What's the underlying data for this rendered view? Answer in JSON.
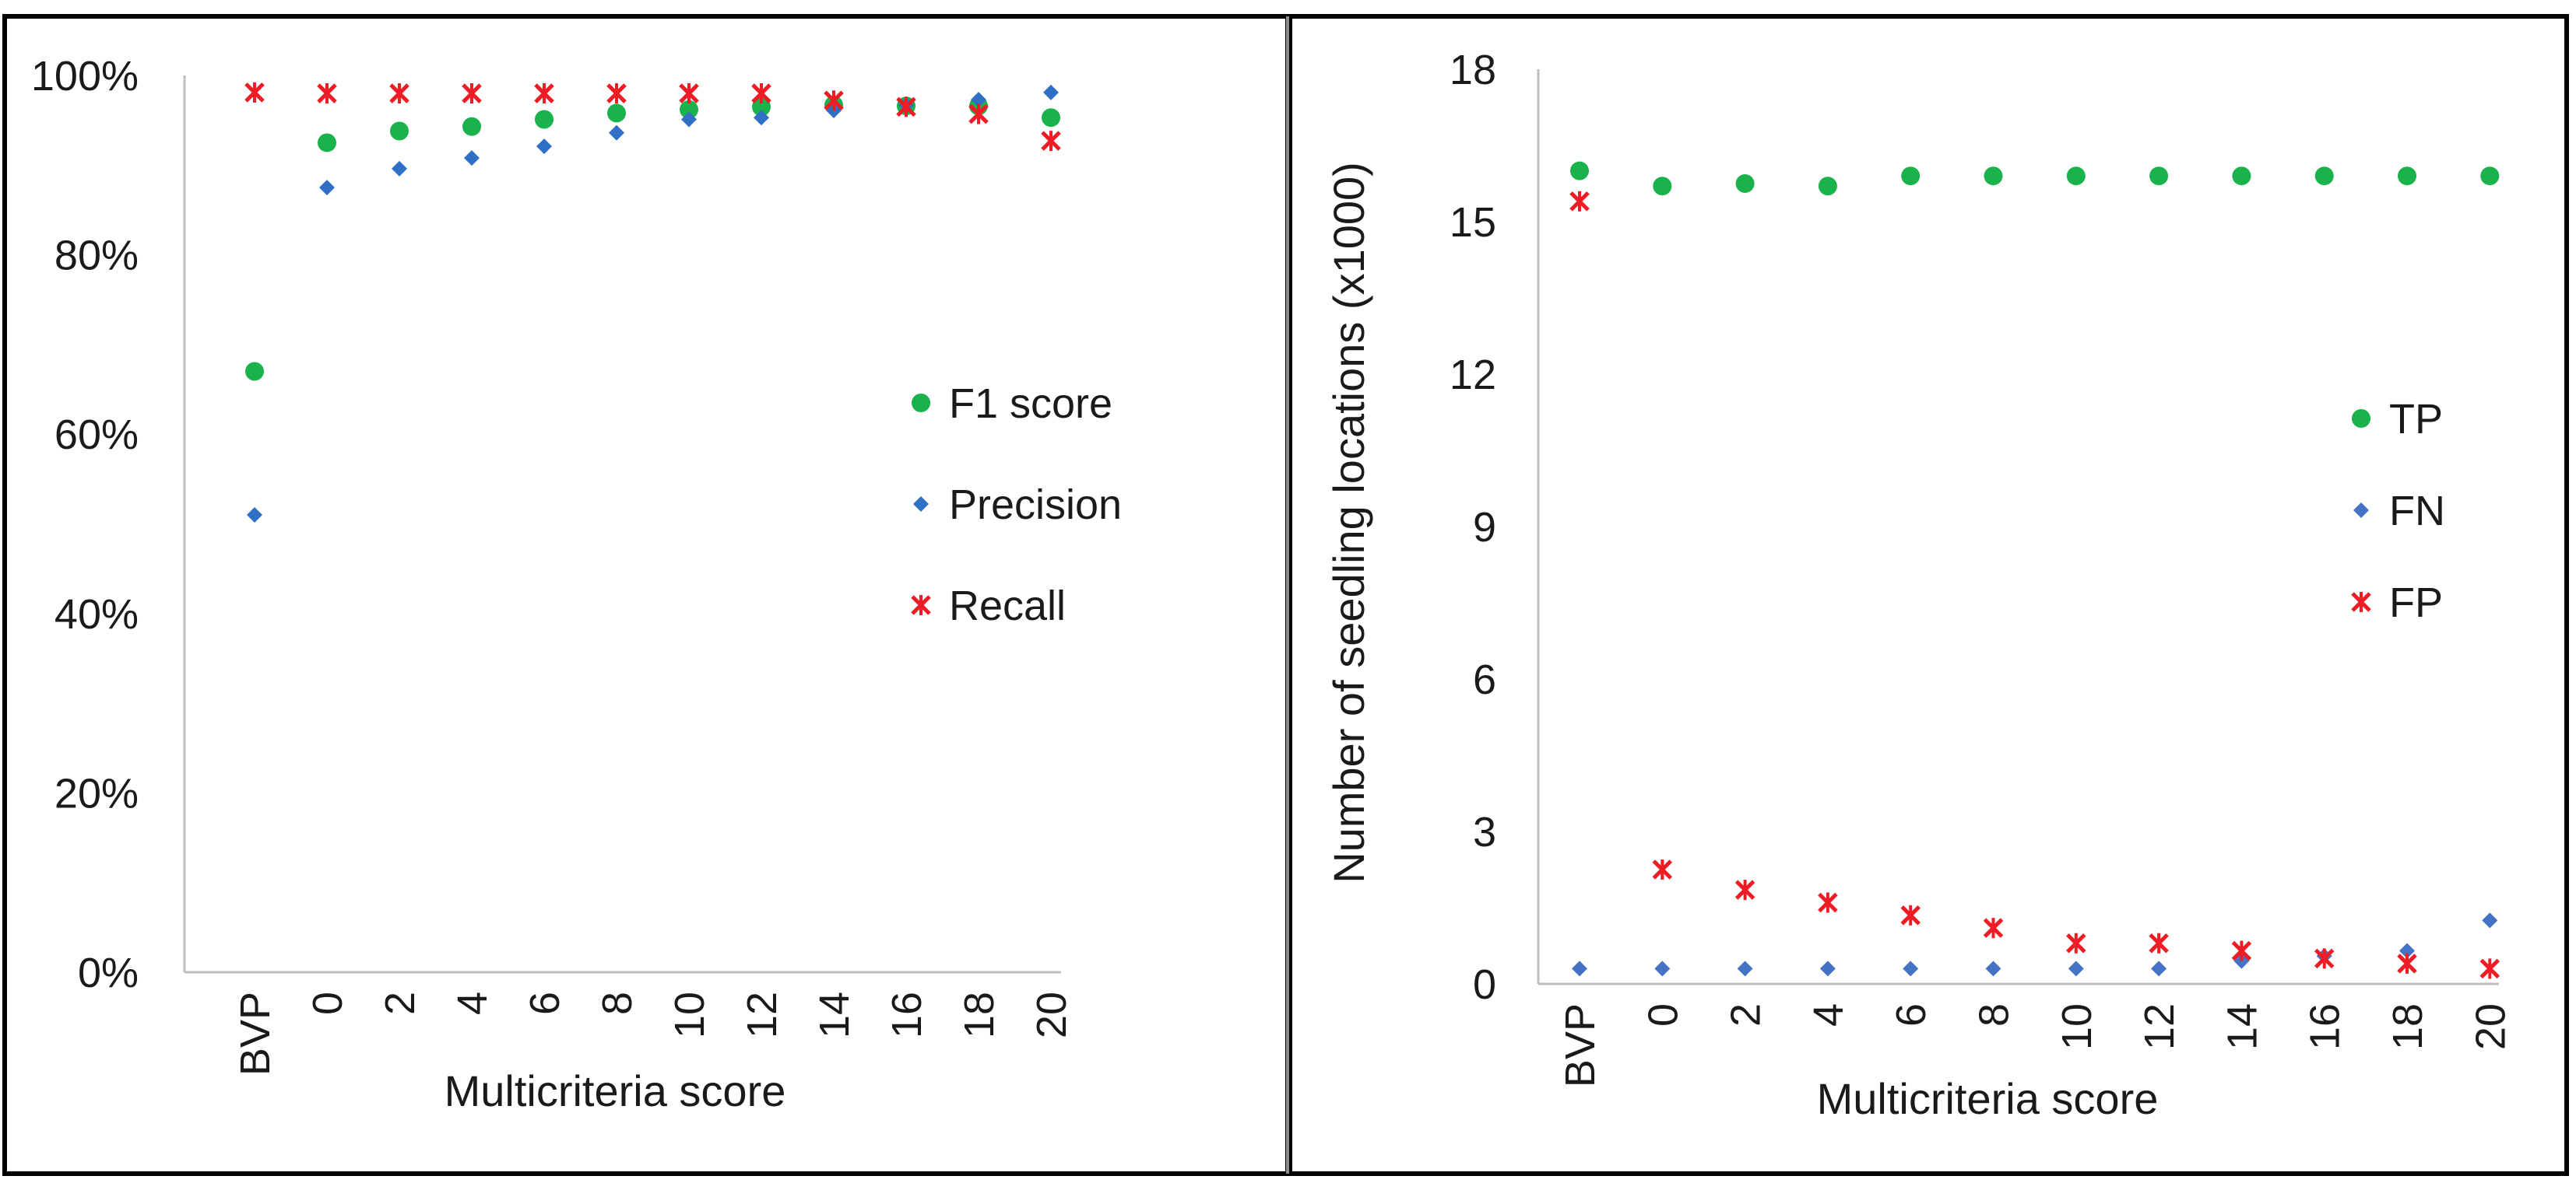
{
  "colors": {
    "f1": "#19b24b",
    "precision": "#2f6fc6",
    "recall": "#ee1c24",
    "tp": "#19b24b",
    "fn": "#4472c4",
    "fp": "#ee1c24",
    "axis": "#bfbfbf",
    "frame": "#000000"
  },
  "chart_data": [
    {
      "type": "scatter",
      "title": "",
      "xlabel": "Multicriteria score",
      "ylabel": "",
      "categories": [
        "BVP",
        "0",
        "2",
        "4",
        "6",
        "8",
        "10",
        "12",
        "14",
        "16",
        "18",
        "20"
      ],
      "ylim": [
        0,
        100
      ],
      "yticks": [
        "0%",
        "20%",
        "40%",
        "60%",
        "80%",
        "100%"
      ],
      "legend_position": "right",
      "series": [
        {
          "name": "F1 score",
          "marker": "circle",
          "color": "#19b24b",
          "values": [
            67,
            92.5,
            93.8,
            94.3,
            95.1,
            95.8,
            96.2,
            96.5,
            96.7,
            96.6,
            96.6,
            95.3
          ]
        },
        {
          "name": "Precision",
          "marker": "diamond",
          "color": "#2f6fc6",
          "values": [
            51,
            87.5,
            89.6,
            90.8,
            92.1,
            93.6,
            95.1,
            95.3,
            96.1,
            96.7,
            97.3,
            98.1
          ]
        },
        {
          "name": "Recall",
          "marker": "x",
          "color": "#ee1c24",
          "values": [
            98.1,
            98,
            98,
            98,
            98,
            98,
            98,
            98,
            97.2,
            96.5,
            95.7,
            92.7
          ]
        }
      ]
    },
    {
      "type": "scatter",
      "title": "",
      "xlabel": "Multicriteria score",
      "ylabel": "Number of seedling locations (x1000)",
      "categories": [
        "BVP",
        "0",
        "2",
        "4",
        "6",
        "8",
        "10",
        "12",
        "14",
        "16",
        "18",
        "20"
      ],
      "ylim": [
        0,
        18
      ],
      "yticks": [
        "0",
        "3",
        "6",
        "9",
        "12",
        "15",
        "18"
      ],
      "legend_position": "right",
      "series": [
        {
          "name": "TP",
          "marker": "circle",
          "color": "#19b24b",
          "values": [
            16.0,
            15.7,
            15.75,
            15.7,
            15.9,
            15.9,
            15.9,
            15.9,
            15.9,
            15.9,
            15.9,
            15.9
          ]
        },
        {
          "name": "FN",
          "marker": "diamond",
          "color": "#4472c4",
          "values": [
            0.3,
            0.3,
            0.3,
            0.3,
            0.3,
            0.3,
            0.3,
            0.3,
            0.45,
            0.55,
            0.65,
            1.25
          ]
        },
        {
          "name": "FP",
          "marker": "x",
          "color": "#ee1c24",
          "values": [
            15.4,
            2.25,
            1.85,
            1.6,
            1.35,
            1.1,
            0.8,
            0.8,
            0.65,
            0.5,
            0.4,
            0.3
          ]
        }
      ]
    }
  ]
}
